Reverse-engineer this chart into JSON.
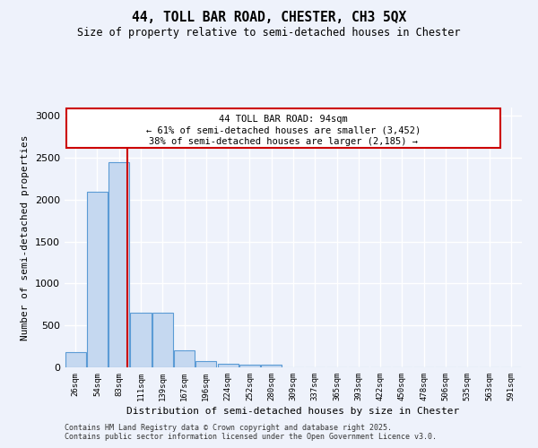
{
  "title": "44, TOLL BAR ROAD, CHESTER, CH3 5QX",
  "subtitle": "Size of property relative to semi-detached houses in Chester",
  "xlabel": "Distribution of semi-detached houses by size in Chester",
  "ylabel": "Number of semi-detached properties",
  "bar_color": "#c5d8f0",
  "bar_edge_color": "#5b9bd5",
  "background_color": "#eef2fb",
  "grid_color": "#ffffff",
  "categories": [
    "26sqm",
    "54sqm",
    "83sqm",
    "111sqm",
    "139sqm",
    "167sqm",
    "196sqm",
    "224sqm",
    "252sqm",
    "280sqm",
    "309sqm",
    "337sqm",
    "365sqm",
    "393sqm",
    "422sqm",
    "450sqm",
    "478sqm",
    "506sqm",
    "535sqm",
    "563sqm",
    "591sqm"
  ],
  "values": [
    180,
    2100,
    2450,
    650,
    650,
    200,
    80,
    40,
    35,
    35,
    0,
    0,
    0,
    0,
    0,
    0,
    0,
    0,
    0,
    0,
    0
  ],
  "ylim": [
    0,
    3100
  ],
  "yticks": [
    0,
    500,
    1000,
    1500,
    2000,
    2500,
    3000
  ],
  "property_bin_index": 2.39,
  "annotation_title": "44 TOLL BAR ROAD: 94sqm",
  "annotation_line1": "← 61% of semi-detached houses are smaller (3,452)",
  "annotation_line2": "38% of semi-detached houses are larger (2,185) →",
  "annotation_color": "#cc0000",
  "vline_color": "#cc0000",
  "footer1": "Contains HM Land Registry data © Crown copyright and database right 2025.",
  "footer2": "Contains public sector information licensed under the Open Government Licence v3.0."
}
